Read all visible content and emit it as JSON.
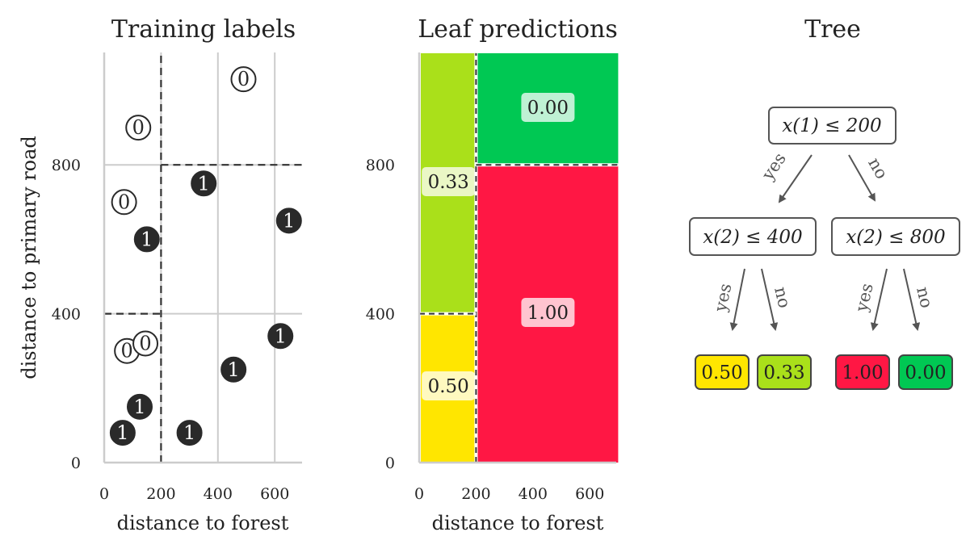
{
  "chart_data": [
    {
      "type": "scatter",
      "title": "Training labels",
      "xlabel": "distance to forest",
      "ylabel": "distance to primary road",
      "xlim": [
        0,
        700
      ],
      "ylim": [
        0,
        1100
      ],
      "xticks": [
        0,
        200,
        400,
        600
      ],
      "yticks": [
        0,
        400,
        800
      ],
      "grid": true,
      "splits": {
        "vertical": [
          {
            "x": 200,
            "y_from": 0,
            "y_to": 1100
          }
        ],
        "horizontal": [
          {
            "y": 400,
            "x_from": 0,
            "x_to": 200
          },
          {
            "y": 800,
            "x_from": 200,
            "x_to": 700
          }
        ]
      },
      "points": [
        {
          "x": 490,
          "y": 1030,
          "label": "0"
        },
        {
          "x": 120,
          "y": 900,
          "label": "0"
        },
        {
          "x": 70,
          "y": 700,
          "label": "0"
        },
        {
          "x": 150,
          "y": 600,
          "label": "1"
        },
        {
          "x": 350,
          "y": 750,
          "label": "1"
        },
        {
          "x": 650,
          "y": 650,
          "label": "1"
        },
        {
          "x": 620,
          "y": 340,
          "label": "1"
        },
        {
          "x": 80,
          "y": 300,
          "label": "0"
        },
        {
          "x": 145,
          "y": 320,
          "label": "0"
        },
        {
          "x": 455,
          "y": 250,
          "label": "1"
        },
        {
          "x": 125,
          "y": 150,
          "label": "1"
        },
        {
          "x": 65,
          "y": 80,
          "label": "1"
        },
        {
          "x": 300,
          "y": 80,
          "label": "1"
        }
      ]
    },
    {
      "type": "heatmap",
      "title": "Leaf predictions",
      "xlabel": "distance to forest",
      "xlim": [
        0,
        700
      ],
      "ylim": [
        0,
        1100
      ],
      "xticks": [
        0,
        200,
        400,
        600
      ],
      "yticks": [
        0,
        400,
        800
      ],
      "regions": [
        {
          "x": [
            0,
            200
          ],
          "y": [
            0,
            400
          ],
          "value": "0.50",
          "color": "#ffe600"
        },
        {
          "x": [
            0,
            200
          ],
          "y": [
            400,
            1100
          ],
          "value": "0.33",
          "color": "#aae01a"
        },
        {
          "x": [
            200,
            700
          ],
          "y": [
            0,
            800
          ],
          "value": "1.00",
          "color": "#ff1744"
        },
        {
          "x": [
            200,
            700
          ],
          "y": [
            800,
            1100
          ],
          "value": "0.00",
          "color": "#00c853"
        }
      ]
    }
  ],
  "tree": {
    "title": "Tree",
    "root": "x(1) ≤ 200",
    "left": "x(2) ≤ 400",
    "right": "x(2) ≤ 800",
    "yes": "yes",
    "no": "no",
    "leaves": [
      {
        "value": "0.50",
        "color": "#ffe600"
      },
      {
        "value": "0.33",
        "color": "#aae01a"
      },
      {
        "value": "1.00",
        "color": "#ff1744"
      },
      {
        "value": "0.00",
        "color": "#00c853"
      }
    ]
  }
}
